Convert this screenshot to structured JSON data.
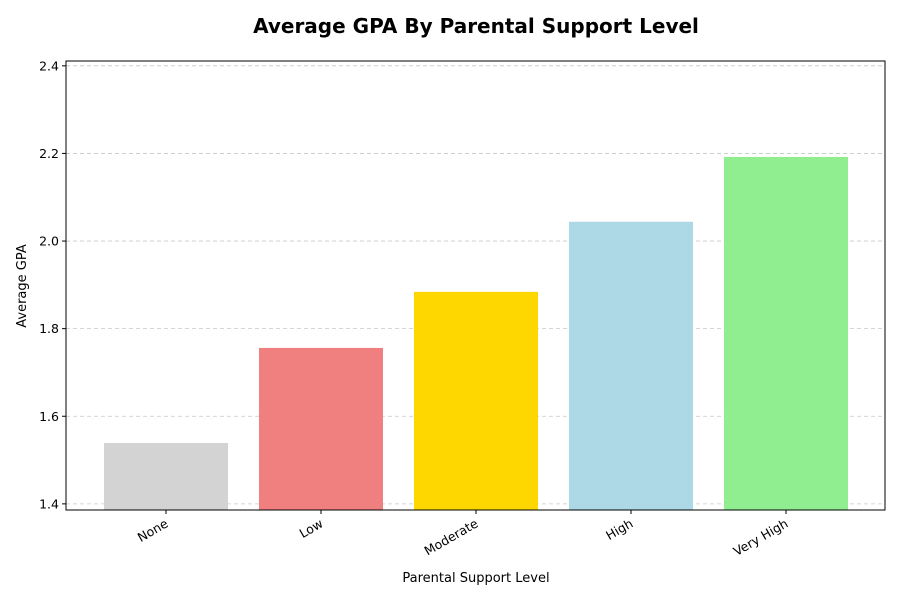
{
  "chart_data": {
    "type": "bar",
    "title": "Average GPA By Parental Support Level",
    "xlabel": "Parental Support Level",
    "ylabel": "Average GPA",
    "categories": [
      "None",
      "Low",
      "Moderate",
      "High",
      "Very High"
    ],
    "values": [
      1.539,
      1.756,
      1.884,
      2.044,
      2.192
    ],
    "colors": [
      "#d3d3d3",
      "#f08080",
      "#ffd700",
      "#add8e6",
      "#90ee90"
    ],
    "ylim": [
      1.386,
      2.411
    ],
    "yticks": [
      "1.4",
      "1.6",
      "1.8",
      "2.0",
      "2.2",
      "2.4"
    ],
    "grid": "y-dashed",
    "legend": "none"
  }
}
